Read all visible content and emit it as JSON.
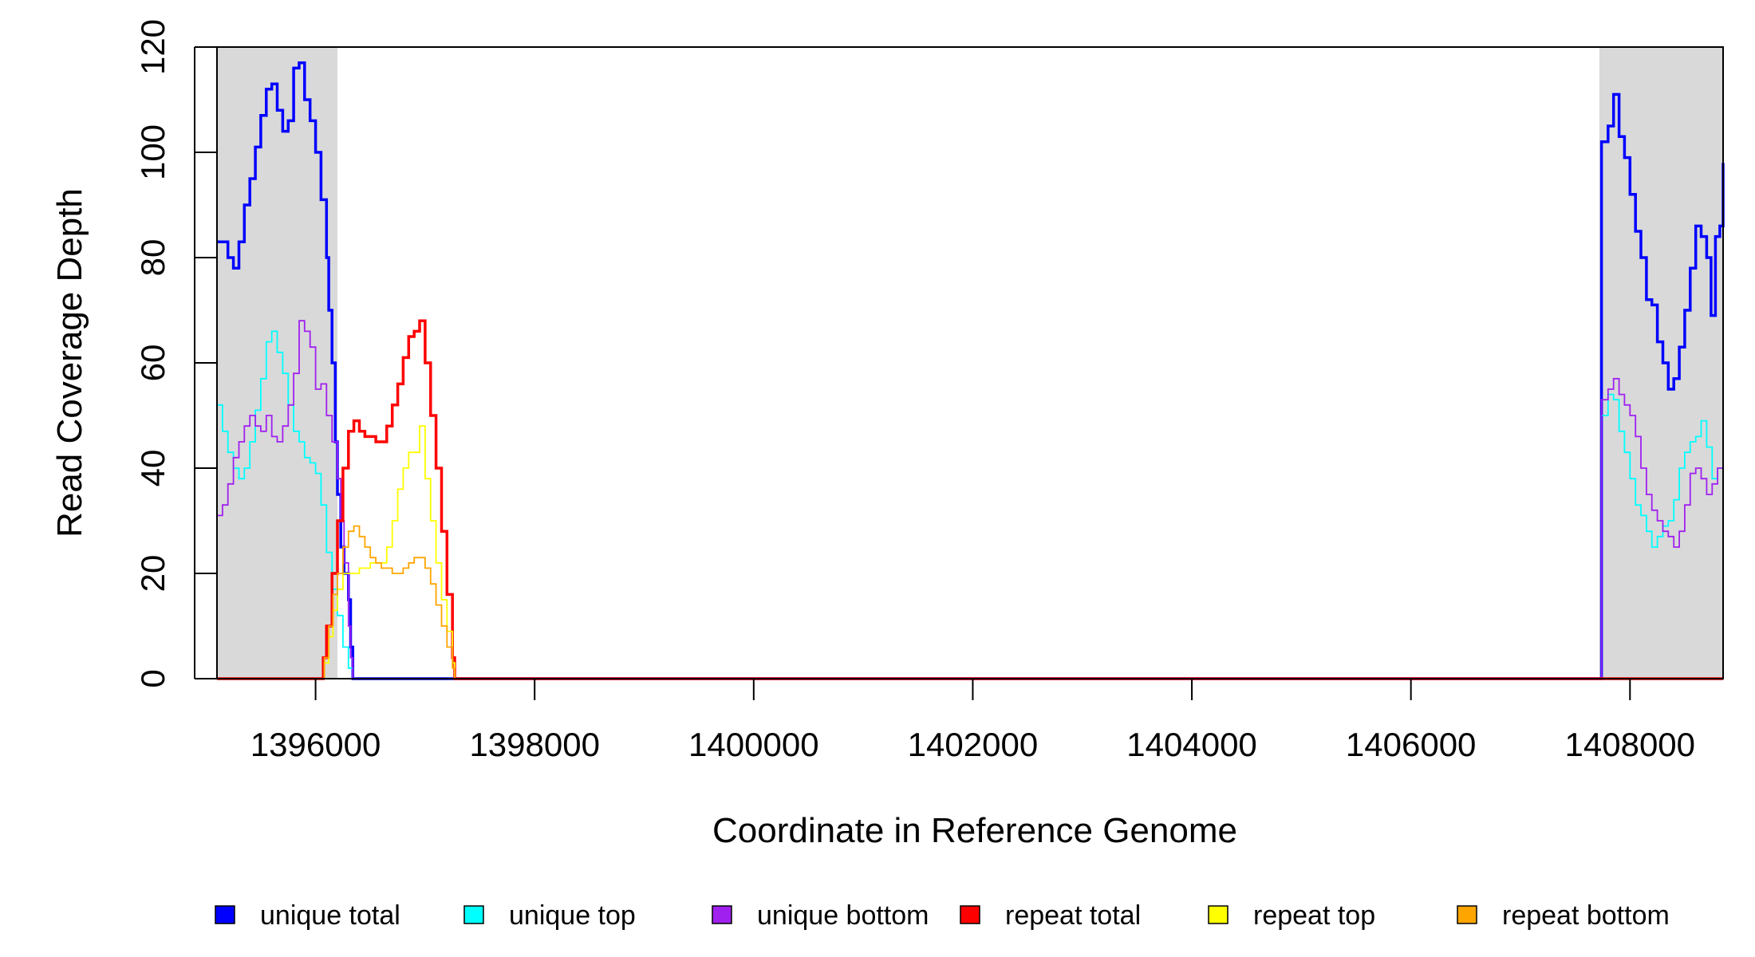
{
  "chart_data": {
    "type": "line",
    "title": "",
    "xlabel": "Coordinate in Reference Genome",
    "ylabel": "Read Coverage Depth",
    "xlim": [
      1395100,
      1408850
    ],
    "ylim": [
      0,
      120
    ],
    "x_ticks": [
      1396000,
      1398000,
      1400000,
      1402000,
      1404000,
      1406000,
      1408000
    ],
    "y_ticks": [
      0,
      20,
      40,
      60,
      80,
      100,
      120
    ],
    "grid": false,
    "shaded_regions": [
      {
        "x": [
          1395100,
          1396200
        ]
      },
      {
        "x": [
          1407720,
          1408850
        ]
      }
    ],
    "legend_placement": "bottom",
    "series": [
      {
        "name": "unique total",
        "color": "#0000FF",
        "width": "thick",
        "points": [
          [
            1395100,
            83
          ],
          [
            1395200,
            80
          ],
          [
            1395250,
            78
          ],
          [
            1395300,
            83
          ],
          [
            1395350,
            90
          ],
          [
            1395400,
            95
          ],
          [
            1395450,
            101
          ],
          [
            1395500,
            107
          ],
          [
            1395550,
            112
          ],
          [
            1395600,
            113
          ],
          [
            1395650,
            108
          ],
          [
            1395700,
            104
          ],
          [
            1395750,
            106
          ],
          [
            1395800,
            116
          ],
          [
            1395850,
            117
          ],
          [
            1395900,
            110
          ],
          [
            1395950,
            106
          ],
          [
            1396000,
            100
          ],
          [
            1396050,
            91
          ],
          [
            1396100,
            80
          ],
          [
            1396120,
            70
          ],
          [
            1396150,
            60
          ],
          [
            1396180,
            45
          ],
          [
            1396200,
            35
          ],
          [
            1396230,
            25
          ],
          [
            1396260,
            20
          ],
          [
            1396300,
            15
          ],
          [
            1396320,
            6
          ],
          [
            1396340,
            0
          ],
          [
            1407720,
            0
          ],
          [
            1407740,
            102
          ],
          [
            1407800,
            105
          ],
          [
            1407850,
            111
          ],
          [
            1407900,
            103
          ],
          [
            1407950,
            99
          ],
          [
            1408000,
            92
          ],
          [
            1408050,
            85
          ],
          [
            1408100,
            80
          ],
          [
            1408150,
            72
          ],
          [
            1408200,
            71
          ],
          [
            1408250,
            64
          ],
          [
            1408300,
            60
          ],
          [
            1408350,
            55
          ],
          [
            1408400,
            57
          ],
          [
            1408450,
            63
          ],
          [
            1408500,
            70
          ],
          [
            1408550,
            78
          ],
          [
            1408600,
            86
          ],
          [
            1408650,
            84
          ],
          [
            1408700,
            80
          ],
          [
            1408740,
            69
          ],
          [
            1408780,
            84
          ],
          [
            1408820,
            86
          ],
          [
            1408850,
            98
          ]
        ]
      },
      {
        "name": "unique top",
        "color": "#00FFFF",
        "width": "thin",
        "points": [
          [
            1395100,
            52
          ],
          [
            1395150,
            47
          ],
          [
            1395200,
            43
          ],
          [
            1395250,
            40
          ],
          [
            1395300,
            38
          ],
          [
            1395350,
            40
          ],
          [
            1395400,
            45
          ],
          [
            1395450,
            51
          ],
          [
            1395500,
            57
          ],
          [
            1395550,
            64
          ],
          [
            1395600,
            66
          ],
          [
            1395650,
            62
          ],
          [
            1395700,
            58
          ],
          [
            1395750,
            52
          ],
          [
            1395800,
            47
          ],
          [
            1395850,
            45
          ],
          [
            1395900,
            42
          ],
          [
            1395950,
            41
          ],
          [
            1396000,
            39
          ],
          [
            1396050,
            33
          ],
          [
            1396100,
            24
          ],
          [
            1396150,
            17
          ],
          [
            1396200,
            12
          ],
          [
            1396250,
            6
          ],
          [
            1396300,
            2
          ],
          [
            1396340,
            0
          ],
          [
            1407720,
            0
          ],
          [
            1407740,
            50
          ],
          [
            1407800,
            54
          ],
          [
            1407850,
            53
          ],
          [
            1407900,
            47
          ],
          [
            1407950,
            43
          ],
          [
            1408000,
            38
          ],
          [
            1408050,
            33
          ],
          [
            1408100,
            31
          ],
          [
            1408150,
            28
          ],
          [
            1408200,
            25
          ],
          [
            1408250,
            27
          ],
          [
            1408300,
            29
          ],
          [
            1408350,
            30
          ],
          [
            1408400,
            34
          ],
          [
            1408450,
            40
          ],
          [
            1408500,
            43
          ],
          [
            1408550,
            45
          ],
          [
            1408600,
            46
          ],
          [
            1408650,
            49
          ],
          [
            1408700,
            44
          ],
          [
            1408750,
            38
          ],
          [
            1408800,
            40
          ],
          [
            1408850,
            45
          ]
        ]
      },
      {
        "name": "unique bottom",
        "color": "#A020F0",
        "width": "thin",
        "points": [
          [
            1395100,
            31
          ],
          [
            1395150,
            33
          ],
          [
            1395200,
            37
          ],
          [
            1395250,
            42
          ],
          [
            1395300,
            45
          ],
          [
            1395350,
            48
          ],
          [
            1395400,
            50
          ],
          [
            1395450,
            48
          ],
          [
            1395500,
            47
          ],
          [
            1395550,
            50
          ],
          [
            1395600,
            46
          ],
          [
            1395650,
            45
          ],
          [
            1395700,
            48
          ],
          [
            1395750,
            52
          ],
          [
            1395800,
            58
          ],
          [
            1395850,
            68
          ],
          [
            1395900,
            66
          ],
          [
            1395950,
            63
          ],
          [
            1396000,
            55
          ],
          [
            1396050,
            56
          ],
          [
            1396100,
            50
          ],
          [
            1396150,
            45
          ],
          [
            1396200,
            38
          ],
          [
            1396230,
            30
          ],
          [
            1396260,
            22
          ],
          [
            1396300,
            10
          ],
          [
            1396320,
            4
          ],
          [
            1396340,
            0
          ],
          [
            1407720,
            0
          ],
          [
            1407740,
            53
          ],
          [
            1407800,
            55
          ],
          [
            1407850,
            57
          ],
          [
            1407900,
            54
          ],
          [
            1407950,
            52
          ],
          [
            1408000,
            50
          ],
          [
            1408050,
            46
          ],
          [
            1408100,
            40
          ],
          [
            1408150,
            35
          ],
          [
            1408200,
            32
          ],
          [
            1408250,
            30
          ],
          [
            1408300,
            28
          ],
          [
            1408350,
            27
          ],
          [
            1408400,
            25
          ],
          [
            1408450,
            28
          ],
          [
            1408500,
            33
          ],
          [
            1408550,
            39
          ],
          [
            1408600,
            40
          ],
          [
            1408650,
            38
          ],
          [
            1408700,
            35
          ],
          [
            1408750,
            37
          ],
          [
            1408800,
            40
          ],
          [
            1408850,
            43
          ]
        ]
      },
      {
        "name": "repeat total",
        "color": "#FF0000",
        "width": "thick",
        "points": [
          [
            1395100,
            0
          ],
          [
            1396050,
            0
          ],
          [
            1396070,
            4
          ],
          [
            1396100,
            10
          ],
          [
            1396150,
            20
          ],
          [
            1396200,
            30
          ],
          [
            1396250,
            40
          ],
          [
            1396300,
            47
          ],
          [
            1396350,
            49
          ],
          [
            1396400,
            47
          ],
          [
            1396450,
            46
          ],
          [
            1396500,
            46
          ],
          [
            1396550,
            45
          ],
          [
            1396600,
            45
          ],
          [
            1396650,
            48
          ],
          [
            1396700,
            52
          ],
          [
            1396750,
            56
          ],
          [
            1396800,
            61
          ],
          [
            1396850,
            65
          ],
          [
            1396900,
            66
          ],
          [
            1396950,
            68
          ],
          [
            1397000,
            60
          ],
          [
            1397050,
            50
          ],
          [
            1397100,
            40
          ],
          [
            1397150,
            28
          ],
          [
            1397200,
            16
          ],
          [
            1397250,
            4
          ],
          [
            1397270,
            0
          ],
          [
            1408850,
            0
          ]
        ]
      },
      {
        "name": "repeat top",
        "color": "#FFFF00",
        "width": "thin",
        "points": [
          [
            1395100,
            0
          ],
          [
            1396050,
            0
          ],
          [
            1396080,
            3
          ],
          [
            1396120,
            8
          ],
          [
            1396160,
            13
          ],
          [
            1396200,
            17
          ],
          [
            1396250,
            20
          ],
          [
            1396300,
            20
          ],
          [
            1396350,
            20
          ],
          [
            1396400,
            21
          ],
          [
            1396450,
            21
          ],
          [
            1396500,
            22
          ],
          [
            1396550,
            22
          ],
          [
            1396600,
            22
          ],
          [
            1396650,
            25
          ],
          [
            1396700,
            30
          ],
          [
            1396750,
            36
          ],
          [
            1396800,
            40
          ],
          [
            1396850,
            43
          ],
          [
            1396900,
            43
          ],
          [
            1396950,
            48
          ],
          [
            1397000,
            38
          ],
          [
            1397050,
            30
          ],
          [
            1397100,
            22
          ],
          [
            1397150,
            15
          ],
          [
            1397200,
            9
          ],
          [
            1397250,
            3
          ],
          [
            1397270,
            0
          ],
          [
            1408850,
            0
          ]
        ]
      },
      {
        "name": "repeat bottom",
        "color": "#FFA500",
        "width": "thin",
        "points": [
          [
            1395100,
            0
          ],
          [
            1396050,
            0
          ],
          [
            1396080,
            4
          ],
          [
            1396120,
            10
          ],
          [
            1396160,
            16
          ],
          [
            1396200,
            20
          ],
          [
            1396250,
            25
          ],
          [
            1396300,
            28
          ],
          [
            1396350,
            29
          ],
          [
            1396400,
            27
          ],
          [
            1396450,
            25
          ],
          [
            1396500,
            23
          ],
          [
            1396550,
            22
          ],
          [
            1396600,
            21
          ],
          [
            1396650,
            21
          ],
          [
            1396700,
            20
          ],
          [
            1396750,
            20
          ],
          [
            1396800,
            21
          ],
          [
            1396850,
            22
          ],
          [
            1396900,
            23
          ],
          [
            1396950,
            23
          ],
          [
            1397000,
            21
          ],
          [
            1397050,
            18
          ],
          [
            1397100,
            14
          ],
          [
            1397150,
            10
          ],
          [
            1397200,
            6
          ],
          [
            1397250,
            2
          ],
          [
            1397270,
            0
          ],
          [
            1408850,
            0
          ]
        ]
      }
    ]
  }
}
